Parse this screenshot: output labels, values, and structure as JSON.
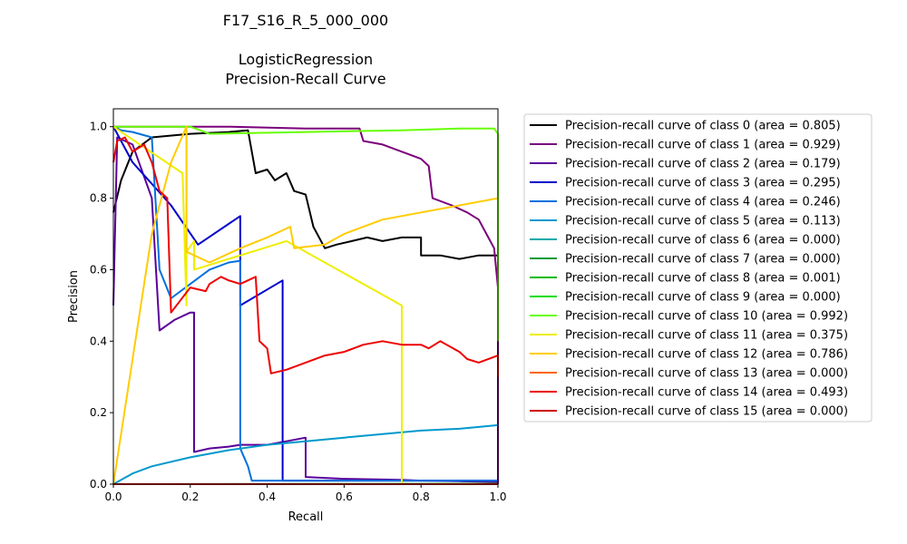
{
  "chart_data": {
    "type": "line",
    "title_lines": [
      "F17_S16_R_5_000_000",
      "",
      "LogisticRegression",
      "Precision-Recall Curve"
    ],
    "xlabel": "Recall",
    "ylabel": "Precision",
    "xlim": [
      0,
      1
    ],
    "ylim": [
      0,
      1.05
    ],
    "xticks": [
      0.0,
      0.2,
      0.4,
      0.6,
      0.8,
      1.0
    ],
    "yticks": [
      0.0,
      0.2,
      0.4,
      0.6,
      0.8,
      1.0
    ],
    "xtick_labels": [
      "0.0",
      "0.2",
      "0.4",
      "0.6",
      "0.8",
      "1.0"
    ],
    "ytick_labels": [
      "0.0",
      "0.2",
      "0.4",
      "0.6",
      "0.8",
      "1.0"
    ],
    "grid": false,
    "legend_position": "outside-right",
    "series": [
      {
        "label": "Precision-recall curve of class 0 (area = 0.805)",
        "color": "#000000",
        "points": [
          [
            0,
            0.76
          ],
          [
            0.02,
            0.85
          ],
          [
            0.05,
            0.93
          ],
          [
            0.1,
            0.97
          ],
          [
            0.2,
            0.98
          ],
          [
            0.3,
            0.985
          ],
          [
            0.35,
            0.99
          ],
          [
            0.37,
            0.87
          ],
          [
            0.4,
            0.88
          ],
          [
            0.42,
            0.85
          ],
          [
            0.45,
            0.87
          ],
          [
            0.47,
            0.82
          ],
          [
            0.5,
            0.81
          ],
          [
            0.52,
            0.72
          ],
          [
            0.55,
            0.66
          ],
          [
            0.58,
            0.67
          ],
          [
            0.62,
            0.68
          ],
          [
            0.66,
            0.69
          ],
          [
            0.7,
            0.68
          ],
          [
            0.75,
            0.69
          ],
          [
            0.8,
            0.69
          ],
          [
            0.8,
            0.64
          ],
          [
            0.85,
            0.64
          ],
          [
            0.9,
            0.63
          ],
          [
            0.95,
            0.64
          ],
          [
            1.0,
            0.64
          ],
          [
            1.0,
            0.25
          ]
        ]
      },
      {
        "label": "Precision-recall curve of class 1 (area = 0.929)",
        "color": "#7b007b",
        "points": [
          [
            0,
            1.0
          ],
          [
            0.3,
            1.0
          ],
          [
            0.5,
            0.995
          ],
          [
            0.64,
            0.995
          ],
          [
            0.65,
            0.96
          ],
          [
            0.7,
            0.95
          ],
          [
            0.75,
            0.93
          ],
          [
            0.8,
            0.91
          ],
          [
            0.82,
            0.89
          ],
          [
            0.83,
            0.8
          ],
          [
            0.88,
            0.78
          ],
          [
            0.92,
            0.76
          ],
          [
            0.95,
            0.74
          ],
          [
            0.97,
            0.7
          ],
          [
            0.99,
            0.66
          ],
          [
            1.0,
            0.55
          ],
          [
            1.0,
            0.0
          ]
        ]
      },
      {
        "label": "Precision-recall curve of class 2 (area = 0.179)",
        "color": "#5a0099",
        "points": [
          [
            0,
            0.5
          ],
          [
            0.01,
            0.97
          ],
          [
            0.05,
            0.95
          ],
          [
            0.1,
            0.8
          ],
          [
            0.12,
            0.43
          ],
          [
            0.16,
            0.46
          ],
          [
            0.2,
            0.48
          ],
          [
            0.21,
            0.48
          ],
          [
            0.21,
            0.09
          ],
          [
            0.25,
            0.1
          ],
          [
            0.3,
            0.105
          ],
          [
            0.33,
            0.11
          ],
          [
            0.4,
            0.11
          ],
          [
            0.45,
            0.12
          ],
          [
            0.5,
            0.13
          ],
          [
            0.5,
            0.02
          ],
          [
            0.6,
            0.015
          ],
          [
            0.75,
            0.012
          ],
          [
            0.8,
            0.01
          ],
          [
            0.9,
            0.008
          ],
          [
            1.0,
            0.006
          ]
        ]
      },
      {
        "label": "Precision-recall curve of class 3 (area = 0.295)",
        "color": "#0000cc",
        "points": [
          [
            0,
            1.0
          ],
          [
            0.05,
            0.9
          ],
          [
            0.15,
            0.78
          ],
          [
            0.22,
            0.67
          ],
          [
            0.33,
            0.75
          ],
          [
            0.33,
            0.5
          ],
          [
            0.44,
            0.57
          ],
          [
            0.44,
            0.01
          ],
          [
            0.6,
            0.01
          ],
          [
            0.8,
            0.01
          ],
          [
            1.0,
            0.01
          ]
        ]
      },
      {
        "label": "Precision-recall curve of class 4 (area = 0.246)",
        "color": "#0070dd",
        "points": [
          [
            0,
            1.0
          ],
          [
            0.02,
            0.99
          ],
          [
            0.05,
            0.985
          ],
          [
            0.1,
            0.97
          ],
          [
            0.12,
            0.6
          ],
          [
            0.15,
            0.52
          ],
          [
            0.2,
            0.56
          ],
          [
            0.25,
            0.6
          ],
          [
            0.3,
            0.62
          ],
          [
            0.33,
            0.625
          ],
          [
            0.33,
            0.1
          ],
          [
            0.35,
            0.05
          ],
          [
            0.36,
            0.01
          ],
          [
            0.5,
            0.01
          ],
          [
            0.7,
            0.01
          ],
          [
            1.0,
            0.01
          ]
        ]
      },
      {
        "label": "Precision-recall curve of class 5 (area = 0.113)",
        "color": "#0099cc",
        "points": [
          [
            0,
            0.0
          ],
          [
            0.05,
            0.03
          ],
          [
            0.1,
            0.05
          ],
          [
            0.2,
            0.075
          ],
          [
            0.3,
            0.095
          ],
          [
            0.4,
            0.11
          ],
          [
            0.5,
            0.12
          ],
          [
            0.6,
            0.13
          ],
          [
            0.7,
            0.14
          ],
          [
            0.8,
            0.15
          ],
          [
            0.9,
            0.155
          ],
          [
            1.0,
            0.165
          ]
        ]
      },
      {
        "label": "Precision-recall curve of class 6 (area = 0.000)",
        "color": "#00aaaa",
        "points": [
          [
            0,
            0.0
          ],
          [
            1.0,
            0.0
          ]
        ]
      },
      {
        "label": "Precision-recall curve of class 7 (area = 0.000)",
        "color": "#009933",
        "points": [
          [
            0,
            0.0
          ],
          [
            1.0,
            0.0
          ]
        ]
      },
      {
        "label": "Precision-recall curve of class 8 (area = 0.001)",
        "color": "#00bb00",
        "points": [
          [
            0,
            0.0
          ],
          [
            1.0,
            0.001
          ]
        ]
      },
      {
        "label": "Precision-recall curve of class 9 (area = 0.000)",
        "color": "#00dd00",
        "points": [
          [
            0,
            0.0
          ],
          [
            1.0,
            0.0
          ]
        ]
      },
      {
        "label": "Precision-recall curve of class 10 (area = 0.992)",
        "color": "#66ff00",
        "points": [
          [
            0,
            1.0
          ],
          [
            0.2,
            1.0
          ],
          [
            0.25,
            0.98
          ],
          [
            0.5,
            0.985
          ],
          [
            0.75,
            0.99
          ],
          [
            0.9,
            0.995
          ],
          [
            0.99,
            0.995
          ],
          [
            1.0,
            0.98
          ],
          [
            1.0,
            0.4
          ]
        ]
      },
      {
        "label": "Precision-recall curve of class 11 (area = 0.375)",
        "color": "#eeee00",
        "points": [
          [
            0,
            1.0
          ],
          [
            0.18,
            0.87
          ],
          [
            0.19,
            0.5
          ],
          [
            0.19,
            1.0
          ],
          [
            0.19,
            0.65
          ],
          [
            0.21,
            0.68
          ],
          [
            0.21,
            0.6
          ],
          [
            0.45,
            0.68
          ],
          [
            0.75,
            0.5
          ],
          [
            0.75,
            0.0
          ]
        ]
      },
      {
        "label": "Precision-recall curve of class 12 (area = 0.786)",
        "color": "#ffcc00",
        "points": [
          [
            0,
            0.0
          ],
          [
            0.05,
            0.35
          ],
          [
            0.1,
            0.7
          ],
          [
            0.15,
            0.9
          ],
          [
            0.19,
            1.0
          ],
          [
            0.19,
            0.65
          ],
          [
            0.25,
            0.62
          ],
          [
            0.33,
            0.66
          ],
          [
            0.4,
            0.69
          ],
          [
            0.46,
            0.72
          ],
          [
            0.47,
            0.66
          ],
          [
            0.55,
            0.67
          ],
          [
            0.6,
            0.7
          ],
          [
            0.65,
            0.72
          ],
          [
            0.7,
            0.74
          ],
          [
            0.8,
            0.76
          ],
          [
            0.9,
            0.78
          ],
          [
            1.0,
            0.8
          ]
        ]
      },
      {
        "label": "Precision-recall curve of class 13 (area = 0.000)",
        "color": "#ff6600",
        "points": [
          [
            0,
            0.0
          ],
          [
            1.0,
            0.0
          ]
        ]
      },
      {
        "label": "Precision-recall curve of class 14 (area = 0.493)",
        "color": "#ee0000",
        "points": [
          [
            0,
            0.9
          ],
          [
            0.01,
            0.96
          ],
          [
            0.03,
            0.97
          ],
          [
            0.05,
            0.93
          ],
          [
            0.08,
            0.95
          ],
          [
            0.1,
            0.9
          ],
          [
            0.12,
            0.82
          ],
          [
            0.14,
            0.8
          ],
          [
            0.15,
            0.48
          ],
          [
            0.2,
            0.55
          ],
          [
            0.24,
            0.54
          ],
          [
            0.25,
            0.56
          ],
          [
            0.28,
            0.58
          ],
          [
            0.3,
            0.57
          ],
          [
            0.33,
            0.56
          ],
          [
            0.37,
            0.58
          ],
          [
            0.38,
            0.4
          ],
          [
            0.4,
            0.38
          ],
          [
            0.41,
            0.31
          ],
          [
            0.45,
            0.32
          ],
          [
            0.5,
            0.34
          ],
          [
            0.55,
            0.36
          ],
          [
            0.6,
            0.37
          ],
          [
            0.65,
            0.39
          ],
          [
            0.7,
            0.4
          ],
          [
            0.75,
            0.39
          ],
          [
            0.8,
            0.39
          ],
          [
            0.82,
            0.38
          ],
          [
            0.85,
            0.4
          ],
          [
            0.9,
            0.37
          ],
          [
            0.92,
            0.35
          ],
          [
            0.95,
            0.34
          ],
          [
            1.0,
            0.36
          ],
          [
            1.0,
            0.3
          ]
        ]
      },
      {
        "label": "Precision-recall curve of class 15 (area = 0.000)",
        "color": "#cc0000",
        "points": [
          [
            0,
            0.0
          ],
          [
            1.0,
            0.0
          ]
        ]
      }
    ]
  }
}
